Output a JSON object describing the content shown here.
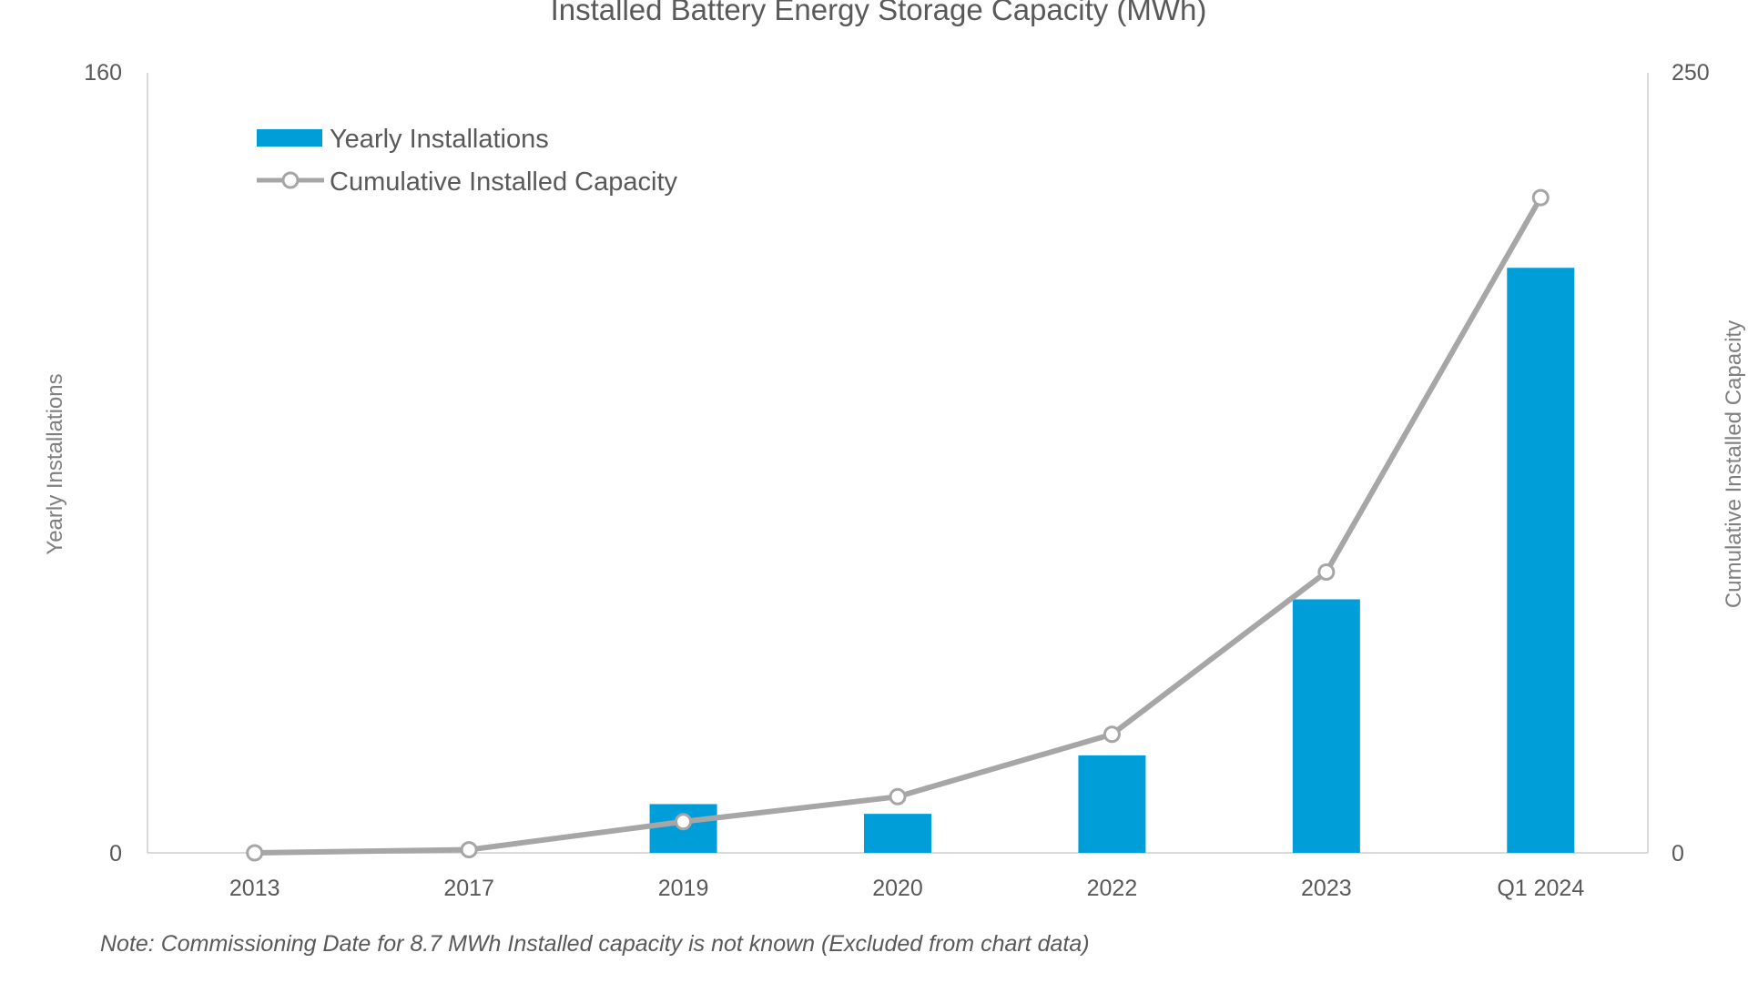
{
  "chart_data": {
    "type": "bar",
    "title": "Installed Battery Energy Storage Capacity (MWh)",
    "categories": [
      "2013",
      "2017",
      "2019",
      "2020",
      "2022",
      "2023",
      "Q1 2024"
    ],
    "series": [
      {
        "name": "Yearly Installations",
        "kind": "bar",
        "axis": "left",
        "values": [
          0,
          0,
          10,
          8,
          20,
          52,
          120
        ]
      },
      {
        "name": "Cumulative Installed Capacity",
        "kind": "line",
        "axis": "right",
        "values": [
          0,
          1,
          10,
          18,
          38,
          90,
          210
        ]
      }
    ],
    "ylabel": "Yearly Installations",
    "ylabel_right": "Cumulative Installed Capacity",
    "ylim": [
      0,
      160
    ],
    "ylim_right": [
      0,
      250
    ],
    "yticks": [
      "0",
      "160"
    ],
    "yticks_right": [
      "0",
      "250"
    ],
    "legend_position": "top-left",
    "grid": false
  },
  "note": "Note: Commissioning Date for 8.7 MWh Installed capacity is not known (Excluded from chart data)",
  "colors": {
    "bar": "#009ed8",
    "line": "#a6a6a6",
    "axis": "#d9d9d9",
    "text": "#595959"
  }
}
